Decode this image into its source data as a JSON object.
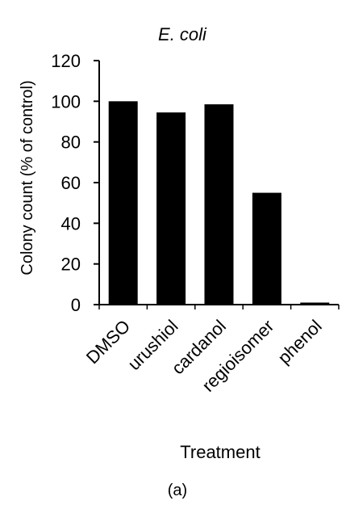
{
  "chart_data": {
    "type": "bar",
    "title": "E. coli",
    "xlabel": "Treatment",
    "ylabel": "Colony count (% of control)",
    "categories": [
      "DMSO",
      "urushiol",
      "cardanol",
      "regioisomer",
      "phenol"
    ],
    "values": [
      100,
      94.5,
      98.5,
      55,
      1
    ],
    "ylim": [
      0,
      120
    ],
    "yticks": [
      "0",
      "20",
      "40",
      "60",
      "80",
      "100",
      "120"
    ],
    "grid": false,
    "legend": "none",
    "panel_label": "(a)",
    "colors": {
      "bar": "#000000",
      "axis": "#000000",
      "text": "#000000",
      "background": "#ffffff"
    }
  }
}
